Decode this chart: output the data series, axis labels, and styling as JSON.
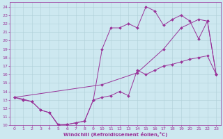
{
  "xlabel": "Windchill (Refroidissement éolien,°C)",
  "background_color": "#cde8f0",
  "grid_color": "#b0cfd8",
  "line_color": "#993399",
  "xlim": [
    -0.5,
    23.5
  ],
  "ylim": [
    10,
    24.5
  ],
  "xticks": [
    0,
    1,
    2,
    3,
    4,
    5,
    6,
    7,
    8,
    9,
    10,
    11,
    12,
    13,
    14,
    15,
    16,
    17,
    18,
    19,
    20,
    21,
    22,
    23
  ],
  "yticks": [
    10,
    11,
    12,
    13,
    14,
    15,
    16,
    17,
    18,
    19,
    20,
    21,
    22,
    23,
    24
  ],
  "line_valley_x": [
    0,
    1,
    2,
    3,
    4,
    5,
    6,
    7,
    8,
    9,
    10,
    11,
    12,
    13,
    14,
    15,
    16,
    17,
    18,
    19,
    20,
    21,
    22,
    23
  ],
  "line_valley_y": [
    13.3,
    13.0,
    12.8,
    11.8,
    11.5,
    10.0,
    10.1,
    10.3,
    10.5,
    13.0,
    13.3,
    13.5,
    14.0,
    13.5,
    16.5,
    16.0,
    16.5,
    17.0,
    17.2,
    17.5,
    17.8,
    18.0,
    18.2,
    16.0
  ],
  "line_mountain_x": [
    0,
    1,
    2,
    3,
    4,
    5,
    6,
    7,
    8,
    9,
    10,
    11,
    12,
    13,
    14,
    15,
    16,
    17,
    18,
    19,
    20,
    21,
    22,
    23
  ],
  "line_mountain_y": [
    13.3,
    13.1,
    12.8,
    11.8,
    11.5,
    10.1,
    10.1,
    10.3,
    10.5,
    13.0,
    19.0,
    21.5,
    21.5,
    22.0,
    21.5,
    24.0,
    23.5,
    21.8,
    22.5,
    23.0,
    22.3,
    20.2,
    22.3,
    16.0
  ],
  "line_diagonal_x": [
    0,
    10,
    14,
    17,
    19,
    21,
    22,
    23
  ],
  "line_diagonal_y": [
    13.3,
    14.8,
    16.2,
    19.0,
    21.5,
    22.5,
    22.3,
    16.0
  ],
  "markersize": 2.0,
  "linewidth": 0.7
}
